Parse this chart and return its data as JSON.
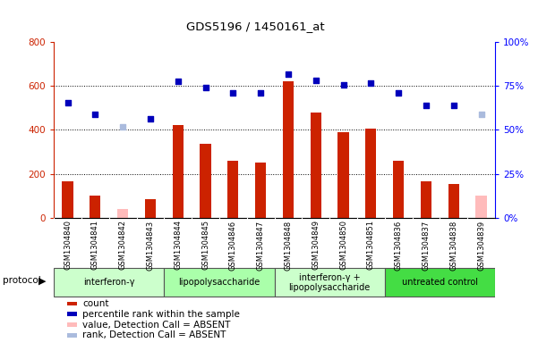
{
  "title": "GDS5196 / 1450161_at",
  "samples": [
    "GSM1304840",
    "GSM1304841",
    "GSM1304842",
    "GSM1304843",
    "GSM1304844",
    "GSM1304845",
    "GSM1304846",
    "GSM1304847",
    "GSM1304848",
    "GSM1304849",
    "GSM1304850",
    "GSM1304851",
    "GSM1304836",
    "GSM1304837",
    "GSM1304838",
    "GSM1304839"
  ],
  "counts": [
    165,
    100,
    null,
    85,
    420,
    335,
    260,
    250,
    620,
    480,
    390,
    405,
    260,
    165,
    155,
    null
  ],
  "counts_absent": [
    null,
    null,
    40,
    null,
    null,
    null,
    null,
    null,
    null,
    null,
    null,
    null,
    null,
    null,
    null,
    100
  ],
  "ranks": [
    525,
    470,
    null,
    450,
    620,
    595,
    570,
    570,
    655,
    625,
    605,
    615,
    570,
    510,
    510,
    null
  ],
  "ranks_absent": [
    null,
    null,
    415,
    null,
    null,
    null,
    null,
    null,
    null,
    null,
    null,
    null,
    null,
    null,
    null,
    470
  ],
  "groups": [
    {
      "label": "interferon-γ",
      "start": 0,
      "end": 4,
      "color": "#ccffcc"
    },
    {
      "label": "lipopolysaccharide",
      "start": 4,
      "end": 8,
      "color": "#aaffaa"
    },
    {
      "label": "interferon-γ +\nlipopolysaccharide",
      "start": 8,
      "end": 12,
      "color": "#ccffcc"
    },
    {
      "label": "untreated control",
      "start": 12,
      "end": 16,
      "color": "#44dd44"
    }
  ],
  "ylim_left": [
    0,
    800
  ],
  "yticks_left": [
    0,
    200,
    400,
    600,
    800
  ],
  "yticks_right_labels": [
    "0%",
    "25%",
    "50%",
    "75%",
    "100%"
  ],
  "bar_color": "#cc2200",
  "bar_absent_color": "#ffbbbb",
  "dot_color": "#0000bb",
  "dot_absent_color": "#aabbdd",
  "tick_bg_color": "#cccccc",
  "plot_bg": "#ffffff",
  "grid_color": "#000000",
  "legend_items": [
    {
      "color": "#cc2200",
      "label": "count"
    },
    {
      "color": "#0000bb",
      "label": "percentile rank within the sample"
    },
    {
      "color": "#ffbbbb",
      "label": "value, Detection Call = ABSENT"
    },
    {
      "color": "#aabbdd",
      "label": "rank, Detection Call = ABSENT"
    }
  ]
}
